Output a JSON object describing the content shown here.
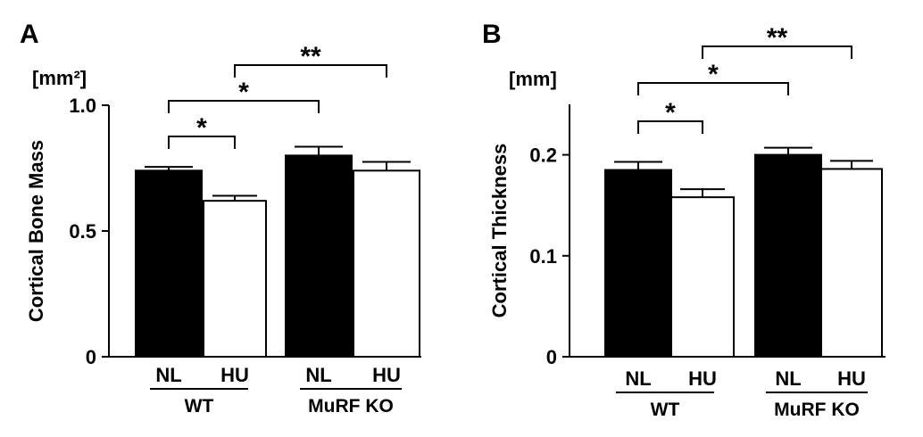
{
  "chart_data": [
    {
      "type": "bar",
      "panel": "A",
      "unit": "[mm²]",
      "ylabel": "Cortical Bone Mass",
      "ylim": [
        0,
        1.0
      ],
      "yticks": [
        "0",
        "0.5",
        "1.0"
      ],
      "yticks_values": [
        0,
        0.5,
        1.0
      ],
      "groups": [
        "WT",
        "MuRF KO"
      ],
      "categories": [
        "NL",
        "HU",
        "NL",
        "HU"
      ],
      "values": [
        0.74,
        0.62,
        0.8,
        0.74
      ],
      "errors": [
        0.015,
        0.02,
        0.035,
        0.035
      ],
      "fills": [
        "#000000",
        "#ffffff",
        "#000000",
        "#ffffff"
      ],
      "significance": [
        {
          "from": 0,
          "to": 1,
          "label": "*"
        },
        {
          "from": 0,
          "to": 2,
          "label": "*"
        },
        {
          "from": 1,
          "to": 3,
          "label": "**"
        }
      ]
    },
    {
      "type": "bar",
      "panel": "B",
      "unit": "[mm]",
      "ylabel": "Cortical Thickness",
      "ylim": [
        0,
        0.25
      ],
      "yticks": [
        "0",
        "0.1",
        "0.2"
      ],
      "yticks_values": [
        0,
        0.1,
        0.2
      ],
      "groups": [
        "WT",
        "MuRF KO"
      ],
      "categories": [
        "NL",
        "HU",
        "NL",
        "HU"
      ],
      "values": [
        0.185,
        0.158,
        0.2,
        0.186
      ],
      "errors": [
        0.008,
        0.008,
        0.007,
        0.008
      ],
      "fills": [
        "#000000",
        "#ffffff",
        "#000000",
        "#ffffff"
      ],
      "significance": [
        {
          "from": 0,
          "to": 1,
          "label": "*"
        },
        {
          "from": 0,
          "to": 2,
          "label": "*"
        },
        {
          "from": 1,
          "to": 3,
          "label": "**"
        }
      ]
    }
  ]
}
